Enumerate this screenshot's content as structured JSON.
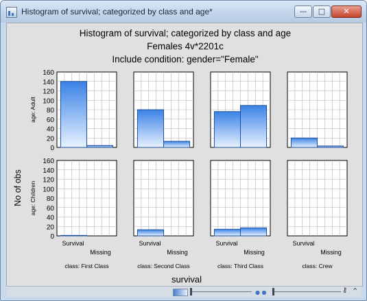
{
  "window": {
    "title": "Histogram of survival; categorized by class and age*",
    "minimize_glyph": "—",
    "maximize_glyph": "□",
    "close_glyph": "✕"
  },
  "chart_data": {
    "type": "bar",
    "title": "Histogram of survival; categorized by class and age",
    "subtitle_lines": [
      "Females 4v*2201c",
      "Include condition: gender=\"Female\""
    ],
    "xlabel": "survival",
    "ylabel": "No of obs",
    "categories": [
      "Survival",
      "Missing"
    ],
    "ylim": [
      0,
      160
    ],
    "yticks": [
      0,
      20,
      40,
      60,
      80,
      100,
      120,
      140,
      160
    ],
    "grid": true,
    "columns": [
      "class: First Class",
      "class: Second Class",
      "class: Third Class",
      "class: Crew"
    ],
    "rows": [
      "age: Adult",
      "age: Children"
    ],
    "panels": [
      [
        {
          "values": [
            140,
            4
          ]
        },
        {
          "values": [
            80,
            13
          ]
        },
        {
          "values": [
            76,
            89
          ]
        },
        {
          "values": [
            20,
            3
          ]
        }
      ],
      [
        {
          "values": [
            1,
            0
          ]
        },
        {
          "values": [
            13,
            0
          ]
        },
        {
          "values": [
            14,
            17
          ]
        },
        {
          "values": [
            0,
            0
          ]
        }
      ]
    ],
    "colors": {
      "bar_top": "#3a82e6",
      "bar_bottom": "#e8f2ff",
      "bar_stroke": "#1d4f9a",
      "grid": "#b3b3b3"
    }
  }
}
